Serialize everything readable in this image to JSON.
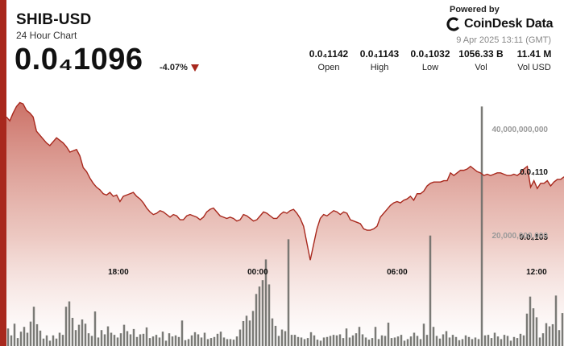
{
  "header": {
    "symbol": "SHIB-USD",
    "subtitle": "24 Hour Chart",
    "price": "0.0₄1096",
    "change": "-4.07%"
  },
  "brand": {
    "powered_by": "Powered by",
    "name": "CoinDesk Data",
    "timestamp": "9 Apr 2025 13:11 (GMT)"
  },
  "stats": [
    {
      "value": "0.0₄1142",
      "label": "Open"
    },
    {
      "value": "0.0₄1143",
      "label": "High"
    },
    {
      "value": "0.0₄1032",
      "label": "Low"
    },
    {
      "value": "1056.33 B",
      "label": "Vol"
    },
    {
      "value": "11.41 M",
      "label": "Vol USD"
    }
  ],
  "colors": {
    "accent": "#a8281d",
    "line": "#a8281d",
    "area_top": "#c96a5f",
    "volume": "#6f6f6a"
  },
  "chart_data": [
    {
      "type": "area",
      "x_range_hours": [
        13.1833,
        37.1833
      ],
      "x_ticks": [
        {
          "label": "18:00",
          "hour": 18
        },
        {
          "label": "00:00",
          "hour": 24
        },
        {
          "label": "06:00",
          "hour": 30
        },
        {
          "label": "12:00",
          "hour": 36
        }
      ],
      "y_ticks": [
        {
          "label": "0.0₄110",
          "value": 1.1e-05
        },
        {
          "label": "0.0₄105",
          "value": 1.05e-05
        }
      ],
      "ylim": [
        9.66e-06,
        1.17e-05
      ],
      "grid": true,
      "price": [
        1.142e-05,
        1.139e-05,
        1.145e-05,
        1.15e-05,
        1.153e-05,
        1.152e-05,
        1.147e-05,
        1.145e-05,
        1.142e-05,
        1.131e-05,
        1.128e-05,
        1.125e-05,
        1.122e-05,
        1.12e-05,
        1.123e-05,
        1.126e-05,
        1.124e-05,
        1.122e-05,
        1.119e-05,
        1.115e-05,
        1.116e-05,
        1.117e-05,
        1.112e-05,
        1.103e-05,
        1.1e-05,
        1.095e-05,
        1.091e-05,
        1.088e-05,
        1.086e-05,
        1.083e-05,
        1.082e-05,
        1.084e-05,
        1.081e-05,
        1.082e-05,
        1.077e-05,
        1.081e-05,
        1.082e-05,
        1.083e-05,
        1.084e-05,
        1.081e-05,
        1.079e-05,
        1.076e-05,
        1.072e-05,
        1.069e-05,
        1.067e-05,
        1.068e-05,
        1.07e-05,
        1.069e-05,
        1.067e-05,
        1.065e-05,
        1.067e-05,
        1.066e-05,
        1.063e-05,
        1.063e-05,
        1.066e-05,
        1.067e-05,
        1.066e-05,
        1.065e-05,
        1.063e-05,
        1.065e-05,
        1.069e-05,
        1.071e-05,
        1.072e-05,
        1.069e-05,
        1.066e-05,
        1.065e-05,
        1.064e-05,
        1.065e-05,
        1.064e-05,
        1.062e-05,
        1.063e-05,
        1.067e-05,
        1.066e-05,
        1.064e-05,
        1.062e-05,
        1.063e-05,
        1.066e-05,
        1.069e-05,
        1.068e-05,
        1.066e-05,
        1.064e-05,
        1.064e-05,
        1.067e-05,
        1.069e-05,
        1.068e-05,
        1.07e-05,
        1.071e-05,
        1.068e-05,
        1.064e-05,
        1.058e-05,
        1.045e-05,
        1.032e-05,
        1.044e-05,
        1.056e-05,
        1.064e-05,
        1.067e-05,
        1.066e-05,
        1.068e-05,
        1.07e-05,
        1.069e-05,
        1.067e-05,
        1.069e-05,
        1.068e-05,
        1.063e-05,
        1.062e-05,
        1.061e-05,
        1.06e-05,
        1.056e-05,
        1.055e-05,
        1.055e-05,
        1.056e-05,
        1.058e-05,
        1.065e-05,
        1.068e-05,
        1.071e-05,
        1.074e-05,
        1.076e-05,
        1.077e-05,
        1.076e-05,
        1.078e-05,
        1.079e-05,
        1.081e-05,
        1.078e-05,
        1.083e-05,
        1.083e-05,
        1.085e-05,
        1.089e-05,
        1.091e-05,
        1.092e-05,
        1.092e-05,
        1.092e-05,
        1.093e-05,
        1.093e-05,
        1.099e-05,
        1.097e-05,
        1.099e-05,
        1.101e-05,
        1.101e-05,
        1.102e-05,
        1.104e-05,
        1.102e-05,
        1.1e-05,
        1.099e-05,
        1.097e-05,
        1.098e-05,
        1.097e-05,
        1.098e-05,
        1.099e-05,
        1.099e-05,
        1.098e-05,
        1.097e-05,
        1.097e-05,
        1.098e-05,
        1.097e-05,
        1.099e-05,
        1.102e-05,
        1.104e-05,
        1.088e-05,
        1.093e-05,
        1.087e-05,
        1.091e-05,
        1.091e-05,
        1.093e-05,
        1.089e-05,
        1.092e-05,
        1.094e-05,
        1.094e-05,
        1.096e-05
      ],
      "volume_scale": [
        0,
        50000000000
      ],
      "volume_ticks": [
        {
          "label": "40,000,000,000",
          "value": 40000000000
        },
        {
          "label": "20,000,000,000",
          "value": 20000000000
        }
      ],
      "volume": [
        3300000000,
        2000000000,
        4200000000,
        1500000000,
        2700000000,
        3600000000,
        2500000000,
        4600000000,
        7400000000,
        4100000000,
        2900000000,
        1400000000,
        2000000000,
        1000000000,
        2000000000,
        1400000000,
        2500000000,
        2100000000,
        7400000000,
        8400000000,
        5300000000,
        3000000000,
        4000000000,
        5000000000,
        4200000000,
        2400000000,
        1900000000,
        6500000000,
        1600000000,
        3000000000,
        2200000000,
        3700000000,
        2500000000,
        2100000000,
        1600000000,
        2400000000,
        4000000000,
        2800000000,
        2200000000,
        3200000000,
        1700000000,
        2200000000,
        2300000000,
        3500000000,
        1500000000,
        1800000000,
        2100000000,
        1600000000,
        2700000000,
        1000000000,
        2400000000,
        1800000000,
        2000000000,
        1700000000,
        4800000000,
        1100000000,
        1300000000,
        2000000000,
        2600000000,
        2200000000,
        1600000000,
        2500000000,
        1300000000,
        1500000000,
        1700000000,
        2300000000,
        2700000000,
        1600000000,
        1300000000,
        1300000000,
        1200000000,
        1800000000,
        3100000000,
        4700000000,
        5700000000,
        4800000000,
        6600000000,
        9800000000,
        11200000000,
        12400000000,
        16300000000,
        11600000000,
        5200000000,
        3800000000,
        1900000000,
        3100000000,
        2800000000,
        1400000000,
        2100000000,
        2100000000,
        1700000000,
        1600000000,
        1300000000,
        1500000000,
        2600000000,
        2000000000,
        1200000000,
        1000000000,
        1600000000,
        1700000000,
        1900000000,
        2100000000,
        2000000000,
        2200000000,
        1500000000,
        3300000000,
        1600000000,
        2000000000,
        2400000000,
        3600000000,
        2200000000,
        1600000000,
        1200000000,
        1500000000,
        3600000000,
        1300000000,
        2000000000,
        1900000000,
        4400000000,
        1500000000,
        1600000000,
        1800000000,
        2100000000,
        1000000000,
        1300000000,
        1800000000,
        2500000000,
        1900000000,
        1300000000,
        4200000000,
        2100000000,
        3000000000,
        3600000000,
        1900000000,
        1400000000,
        2200000000,
        2800000000,
        1600000000,
        2100000000,
        1700000000,
        1100000000,
        1300000000,
        2000000000,
        1700000000,
        1300000000,
        1600000000,
        1300000000,
        1000000000,
        2000000000,
        2100000000,
        1500000000,
        2500000000,
        1800000000,
        1300000000,
        2100000000,
        1900000000,
        1000000000,
        1700000000,
        1500000000,
        2300000000,
        2000000000,
        6100000000,
        9300000000,
        7100000000,
        5400000000,
        1600000000,
        2400000000,
        4300000000,
        3700000000,
        4100000000,
        9500000000,
        3000000000,
        6200000000
      ],
      "volume_highlights": [
        {
          "index": 87,
          "value": 20100000000
        },
        {
          "index": 131,
          "value": 20800000000
        },
        {
          "index": 147,
          "value": 45100000000
        }
      ]
    }
  ]
}
